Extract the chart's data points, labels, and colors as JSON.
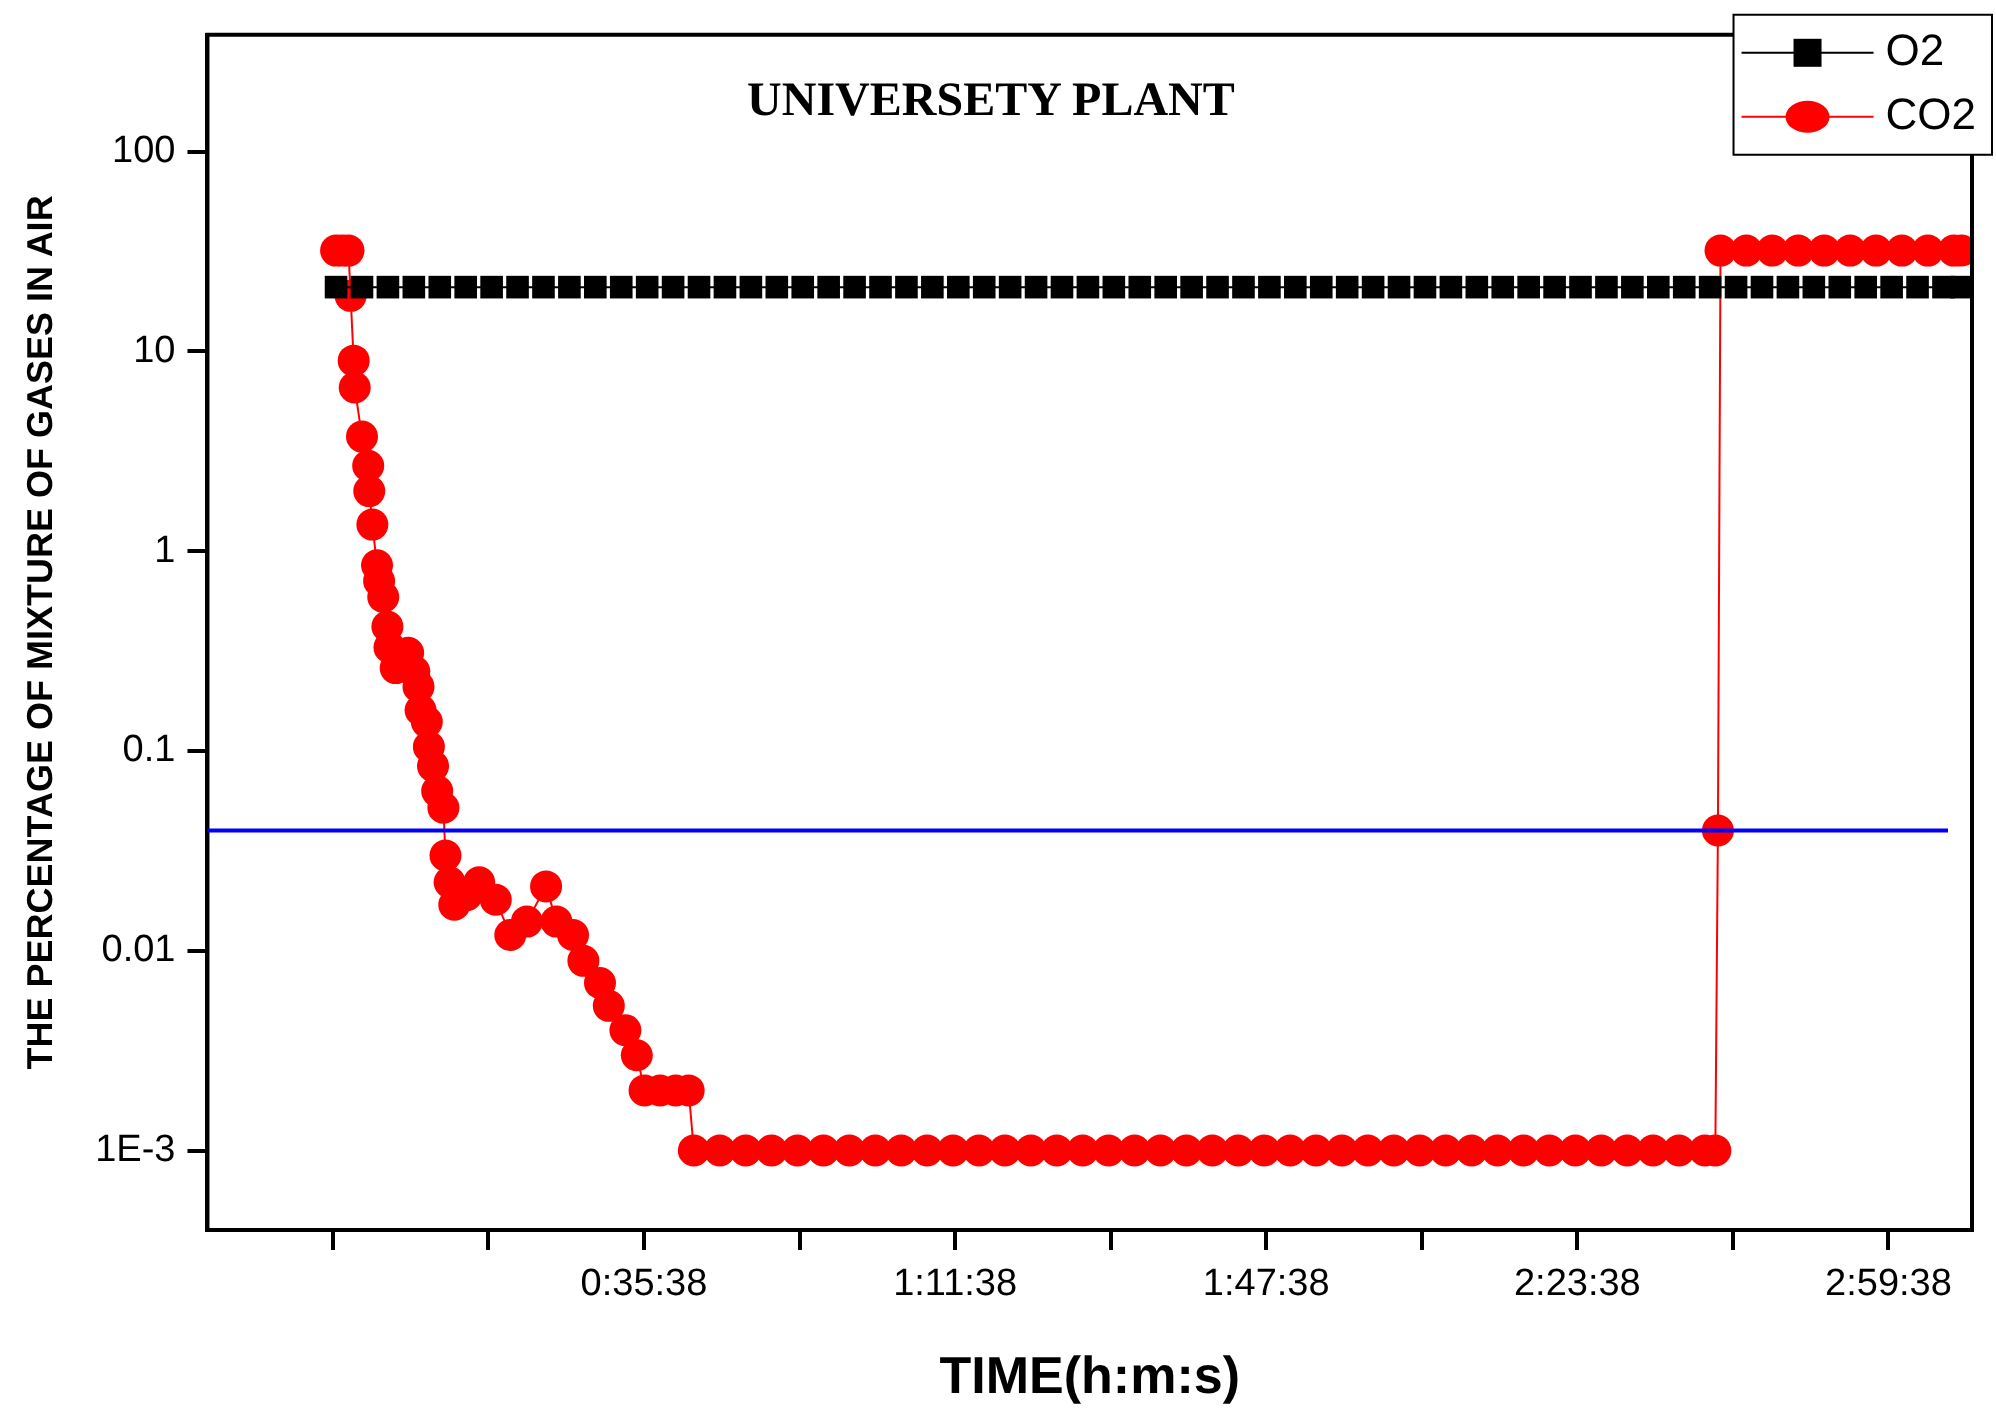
{
  "chart_data": {
    "type": "line",
    "title": "UNIVERSETY PLANT",
    "xlabel": "TIME(h:m:s)",
    "ylabel": "THE PERCENTAGE OF MIXTURE OF GASES IN AIR",
    "log": "y",
    "legend": "top right",
    "line_style": "solid",
    "xlim": [
      -0.248,
      3.155
    ],
    "xticks": [
      {
        "value": -0.00611,
        "label": null
      },
      {
        "value": 0.29389,
        "label": null
      },
      {
        "value": 0.59389,
        "label": "0:35:38"
      },
      {
        "value": 0.89389,
        "label": null
      },
      {
        "value": 1.19389,
        "label": "1:11:38"
      },
      {
        "value": 1.49389,
        "label": null
      },
      {
        "value": 1.79389,
        "label": "1:47:38"
      },
      {
        "value": 2.09389,
        "label": null
      },
      {
        "value": 2.39389,
        "label": "2:23:38"
      },
      {
        "value": 2.69389,
        "label": null
      },
      {
        "value": 2.99389,
        "label": "2:59:38"
      }
    ],
    "ylim": [
      0.0004,
      385
    ],
    "yticks": [
      {
        "value": 0.001,
        "label": "1E-3"
      },
      0.01,
      0.1,
      1,
      10,
      100
    ],
    "ref_lines": [
      {
        "axis": "y",
        "value": 0.04,
        "color": "#0000ff"
      }
    ],
    "series": [
      {
        "name": "O2",
        "color": "#000000",
        "marker": "square",
        "x": [
          0,
          0.05,
          0.1,
          0.15,
          0.2,
          0.25,
          0.3,
          0.35,
          0.4,
          0.45,
          0.5,
          0.55,
          0.6,
          0.65,
          0.7,
          0.75,
          0.8,
          0.85,
          0.9,
          0.95,
          1,
          1.05,
          1.1,
          1.15,
          1.2,
          1.25,
          1.3,
          1.35,
          1.4,
          1.45,
          1.5,
          1.55,
          1.6,
          1.65,
          1.7,
          1.75,
          1.8,
          1.85,
          1.9,
          1.95,
          2,
          2.05,
          2.1,
          2.15,
          2.2,
          2.25,
          2.3,
          2.35,
          2.4,
          2.45,
          2.5,
          2.55,
          2.6,
          2.65,
          2.7,
          2.75,
          2.8,
          2.85,
          2.9,
          2.95,
          3,
          3.05,
          3.1,
          3.135
        ],
        "values": [
          21,
          21,
          21,
          21,
          21,
          21,
          21,
          21,
          21,
          21,
          21,
          21,
          21,
          21,
          21,
          21,
          21,
          21,
          21,
          21,
          21,
          21,
          21,
          21,
          21,
          21,
          21,
          21,
          21,
          21,
          21,
          21,
          21,
          21,
          21,
          21,
          21,
          21,
          21,
          21,
          21,
          21,
          21,
          21,
          21,
          21,
          21,
          21,
          21,
          21,
          21,
          21,
          21,
          21,
          21,
          21,
          21,
          21,
          21,
          21,
          21,
          21,
          21,
          21
        ]
      },
      {
        "name": "CO2",
        "color": "#ff0000",
        "marker": "circle",
        "x": [
          0,
          0.012,
          0.024,
          0.028,
          0.034,
          0.036,
          0.05,
          0.062,
          0.064,
          0.07,
          0.079,
          0.083,
          0.091,
          0.099,
          0.103,
          0.115,
          0.139,
          0.151,
          0.159,
          0.163,
          0.175,
          0.179,
          0.187,
          0.195,
          0.207,
          0.211,
          0.219,
          0.228,
          0.252,
          0.276,
          0.308,
          0.336,
          0.368,
          0.405,
          0.425,
          0.457,
          0.477,
          0.509,
          0.526,
          0.558,
          0.58,
          0.595,
          0.625,
          0.655,
          0.68,
          0.69,
          0.74,
          0.79,
          0.84,
          0.89,
          0.94,
          0.99,
          1.04,
          1.09,
          1.14,
          1.19,
          1.24,
          1.29,
          1.34,
          1.39,
          1.44,
          1.49,
          1.54,
          1.59,
          1.64,
          1.69,
          1.74,
          1.79,
          1.84,
          1.89,
          1.94,
          1.99,
          2.04,
          2.09,
          2.14,
          2.19,
          2.24,
          2.29,
          2.34,
          2.39,
          2.44,
          2.49,
          2.54,
          2.59,
          2.64,
          2.66,
          2.665,
          2.67,
          2.72,
          2.77,
          2.82,
          2.87,
          2.92,
          2.97,
          3.02,
          3.07,
          3.12,
          3.135
        ],
        "values": [
          32,
          32,
          32,
          19,
          9,
          6.6,
          3.75,
          2.68,
          2,
          1.36,
          0.85,
          0.71,
          0.59,
          0.42,
          0.33,
          0.26,
          0.31,
          0.25,
          0.21,
          0.16,
          0.14,
          0.105,
          0.084,
          0.063,
          0.052,
          0.03,
          0.022,
          0.017,
          0.019,
          0.022,
          0.018,
          0.012,
          0.014,
          0.021,
          0.014,
          0.012,
          0.0089,
          0.0069,
          0.0053,
          0.004,
          0.003,
          0.002,
          0.002,
          0.002,
          0.002,
          0.001,
          0.001,
          0.001,
          0.001,
          0.001,
          0.001,
          0.001,
          0.001,
          0.001,
          0.001,
          0.001,
          0.001,
          0.001,
          0.001,
          0.001,
          0.001,
          0.001,
          0.001,
          0.001,
          0.001,
          0.001,
          0.001,
          0.001,
          0.001,
          0.001,
          0.001,
          0.001,
          0.001,
          0.001,
          0.001,
          0.001,
          0.001,
          0.001,
          0.001,
          0.001,
          0.001,
          0.001,
          0.001,
          0.001,
          0.001,
          0.001,
          0.04,
          32,
          32,
          32,
          32,
          32,
          32,
          32,
          32,
          32,
          32,
          32
        ]
      }
    ]
  }
}
